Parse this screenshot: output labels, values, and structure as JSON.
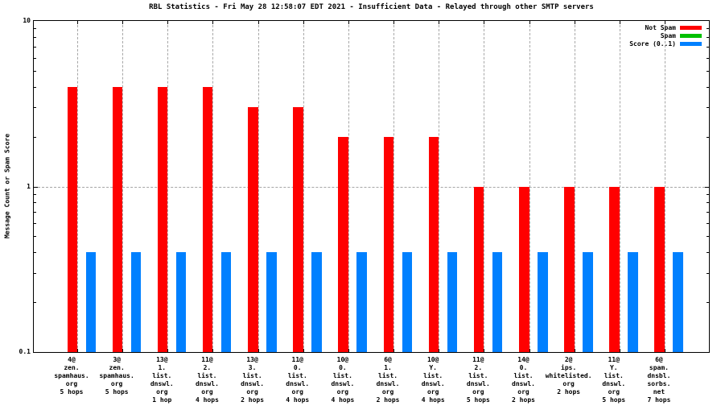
{
  "title": "RBL Statistics - Fri May 28 12:58:07 EDT 2021 - Insufficient Data - Relayed through other SMTP servers",
  "y_axis_title": "Message Count or Spam Score",
  "colors": {
    "background": "#ffffff",
    "border": "#000000",
    "grid": "#a6a6a6"
  },
  "chart_data": {
    "type": "bar",
    "y_scale": "log",
    "ylim": [
      0.1,
      10
    ],
    "y_tick_labels": [
      {
        "label": "0.1",
        "value": 0.1
      },
      {
        "label": "1",
        "value": 1
      },
      {
        "label": "10",
        "value": 10
      }
    ],
    "y_minor_ticks": [
      0.2,
      0.3,
      0.4,
      0.5,
      0.6,
      0.7,
      0.8,
      0.9,
      2,
      3,
      4,
      5,
      6,
      7,
      8,
      9
    ],
    "grid": "horizontal dashed line at y=1, vertical dashed line per category",
    "legend_position": "top-right inside plot",
    "categories": [
      [
        "4@",
        "zen.",
        "spamhaus.",
        "org",
        "5 hops"
      ],
      [
        "3@",
        "zen.",
        "spamhaus.",
        "org",
        "5 hops"
      ],
      [
        "13@",
        "1.",
        "list.",
        "dnswl.",
        "org",
        "1 hop"
      ],
      [
        "11@",
        "2.",
        "list.",
        "dnswl.",
        "org",
        "4 hops"
      ],
      [
        "13@",
        "3.",
        "list.",
        "dnswl.",
        "org",
        "2 hops"
      ],
      [
        "11@",
        "0.",
        "list.",
        "dnswl.",
        "org",
        "4 hops"
      ],
      [
        "10@",
        "0.",
        "list.",
        "dnswl.",
        "org",
        "4 hops"
      ],
      [
        "6@",
        "1.",
        "list.",
        "dnswl.",
        "org",
        "2 hops"
      ],
      [
        "10@",
        "Y.",
        "list.",
        "dnswl.",
        "org",
        "4 hops"
      ],
      [
        "11@",
        "2.",
        "list.",
        "dnswl.",
        "org",
        "5 hops"
      ],
      [
        "14@",
        "0.",
        "list.",
        "dnswl.",
        "org",
        "2 hops"
      ],
      [
        "2@",
        "ips.",
        "whitelisted.",
        "org",
        "2 hops"
      ],
      [
        "11@",
        "Y.",
        "list.",
        "dnswl.",
        "org",
        "5 hops"
      ],
      [
        "6@",
        "spam.",
        "dnsbl.",
        "sorbs.",
        "net",
        "7 hops"
      ]
    ],
    "series": [
      {
        "name": "Not Spam",
        "color": "#ff0000",
        "values": [
          4,
          4,
          4,
          4,
          3,
          3,
          2,
          2,
          2,
          1,
          1,
          1,
          1,
          1
        ]
      },
      {
        "name": "Spam",
        "color": "#00c000",
        "values": [
          0,
          0,
          0,
          0,
          0,
          0,
          0,
          0,
          0,
          0,
          0,
          0,
          0,
          0
        ]
      },
      {
        "name": "Score (0..1)",
        "color": "#0080ff",
        "values": [
          0.4,
          0.4,
          0.4,
          0.4,
          0.4,
          0.4,
          0.4,
          0.4,
          0.4,
          0.4,
          0.4,
          0.4,
          0.4,
          0.4
        ]
      }
    ]
  }
}
